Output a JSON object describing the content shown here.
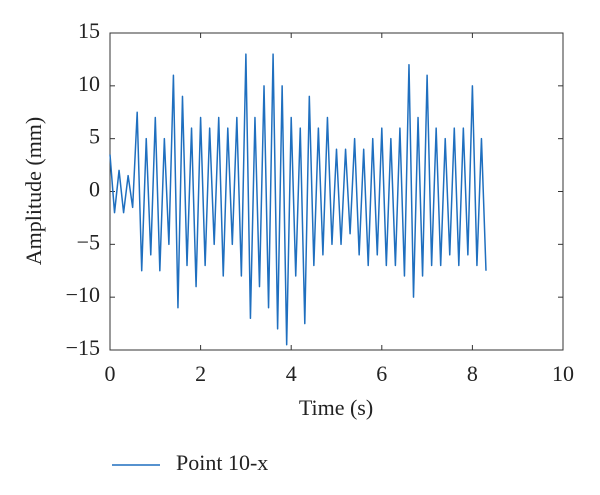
{
  "chart_data": {
    "type": "line",
    "xlabel": "Time (s)",
    "ylabel": "Amplitude (mm)",
    "xlim": [
      0,
      10
    ],
    "xticks": [
      0,
      2,
      4,
      6,
      8,
      10
    ],
    "ylim": [
      -15,
      15
    ],
    "yticks": [
      {
        "value": -15,
        "label": "−15"
      },
      {
        "value": -10,
        "label": "−10"
      },
      {
        "value": -5,
        "label": "−5"
      },
      0,
      5,
      10,
      15
    ],
    "legend": "bottom",
    "x": [
      0,
      0.1,
      0.2,
      0.3,
      0.4,
      0.5,
      0.6,
      0.7,
      0.8,
      0.9,
      1.0,
      1.1,
      1.2,
      1.3,
      1.4,
      1.5,
      1.6,
      1.7,
      1.8,
      1.9,
      2.0,
      2.1,
      2.2,
      2.3,
      2.4,
      2.5,
      2.6,
      2.7,
      2.8,
      2.9,
      3.0,
      3.1,
      3.2,
      3.3,
      3.4,
      3.5,
      3.6,
      3.7,
      3.8,
      3.9,
      4.0,
      4.1,
      4.2,
      4.3,
      4.4,
      4.5,
      4.6,
      4.7,
      4.8,
      4.9,
      5.0,
      5.1,
      5.2,
      5.3,
      5.4,
      5.5,
      5.6,
      5.7,
      5.8,
      5.9,
      6.0,
      6.1,
      6.2,
      6.3,
      6.4,
      6.5,
      6.6,
      6.7,
      6.8,
      6.9,
      7.0,
      7.1,
      7.2,
      7.3,
      7.4,
      7.5,
      7.6,
      7.7,
      7.8,
      7.9,
      8.0,
      8.1,
      8.2,
      8.3
    ],
    "series": [
      {
        "name": "Point 10-x",
        "color": "#1f6fbf",
        "values": [
          3.5,
          -2,
          2,
          -2,
          1.5,
          -1.5,
          7.5,
          -7.5,
          5,
          -6,
          7,
          -7.5,
          5,
          -5,
          11,
          -11,
          9,
          -7,
          6,
          -9,
          7,
          -7,
          6,
          -5,
          7,
          -8,
          6,
          -5,
          7,
          -8,
          13,
          -12,
          7,
          -9,
          10,
          -11,
          13,
          -13,
          10,
          -14.5,
          7,
          -8,
          6,
          -12.5,
          9,
          -7,
          6,
          -6,
          7,
          -5,
          4,
          -5,
          4,
          -4,
          5,
          -6,
          4,
          -7,
          5,
          -6,
          6,
          -7,
          5,
          -7,
          6,
          -8,
          12,
          -10,
          7,
          -8,
          11,
          -7,
          6,
          -7,
          5,
          -6,
          6,
          -7,
          6,
          -6,
          10,
          -7,
          5,
          -7.5
        ]
      }
    ]
  }
}
